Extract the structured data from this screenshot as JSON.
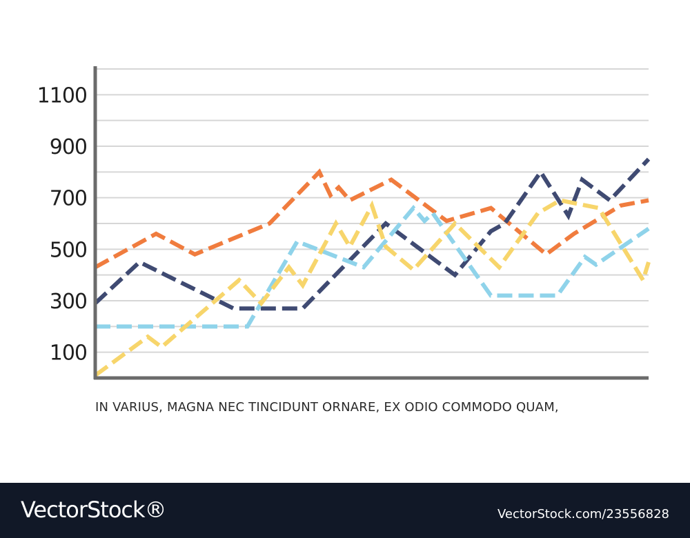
{
  "chart_data": {
    "type": "line",
    "title": "",
    "xlabel": "",
    "ylabel": "",
    "ylim": [
      0,
      1200
    ],
    "y_ticks": [
      100,
      300,
      500,
      700,
      900,
      1100
    ],
    "grid": true,
    "x_range": [
      0,
      20
    ],
    "series": [
      {
        "color": "#f07c3e",
        "x": [
          0,
          2.2,
          3.6,
          6.3,
          8.1,
          8.5,
          8.8,
          9.2,
          10.7,
          12.7,
          14.3,
          16.3,
          17.3,
          19,
          20
        ],
        "y": [
          430,
          560,
          480,
          600,
          800,
          710,
          740,
          690,
          770,
          610,
          660,
          480,
          560,
          670,
          690
        ]
      },
      {
        "color": "#3f4a72",
        "x": [
          0,
          1.6,
          5,
          7.5,
          10.5,
          13,
          14.3,
          14.8,
          16.1,
          17.1,
          17.6,
          18.6,
          20
        ],
        "y": [
          290,
          450,
          270,
          270,
          600,
          400,
          570,
          600,
          800,
          630,
          770,
          690,
          850
        ]
      },
      {
        "color": "#8fd3ea",
        "x": [
          0,
          5.5,
          7.3,
          9.7,
          11.5,
          11.9,
          12.2,
          14.3,
          16.7,
          17.7,
          18.1,
          20
        ],
        "y": [
          200,
          200,
          530,
          430,
          660,
          610,
          640,
          320,
          320,
          470,
          440,
          580
        ]
      },
      {
        "color": "#f7d56b",
        "x": [
          0,
          1.9,
          2.4,
          5.2,
          6,
          7,
          7.5,
          8.7,
          9.2,
          10,
          10.5,
          11.5,
          13,
          14.6,
          16,
          16.8,
          18.2,
          19.8,
          20
        ],
        "y": [
          10,
          160,
          120,
          380,
          290,
          430,
          360,
          600,
          510,
          670,
          510,
          420,
          600,
          430,
          640,
          690,
          660,
          380,
          450
        ]
      }
    ]
  },
  "caption": "IN VARIUS, MAGNA NEC TINCIDUNT ORNARE, EX ODIO COMMODO QUAM,",
  "footer": {
    "brand": "VectorStock®",
    "id": "VectorStock.com/23556828"
  }
}
